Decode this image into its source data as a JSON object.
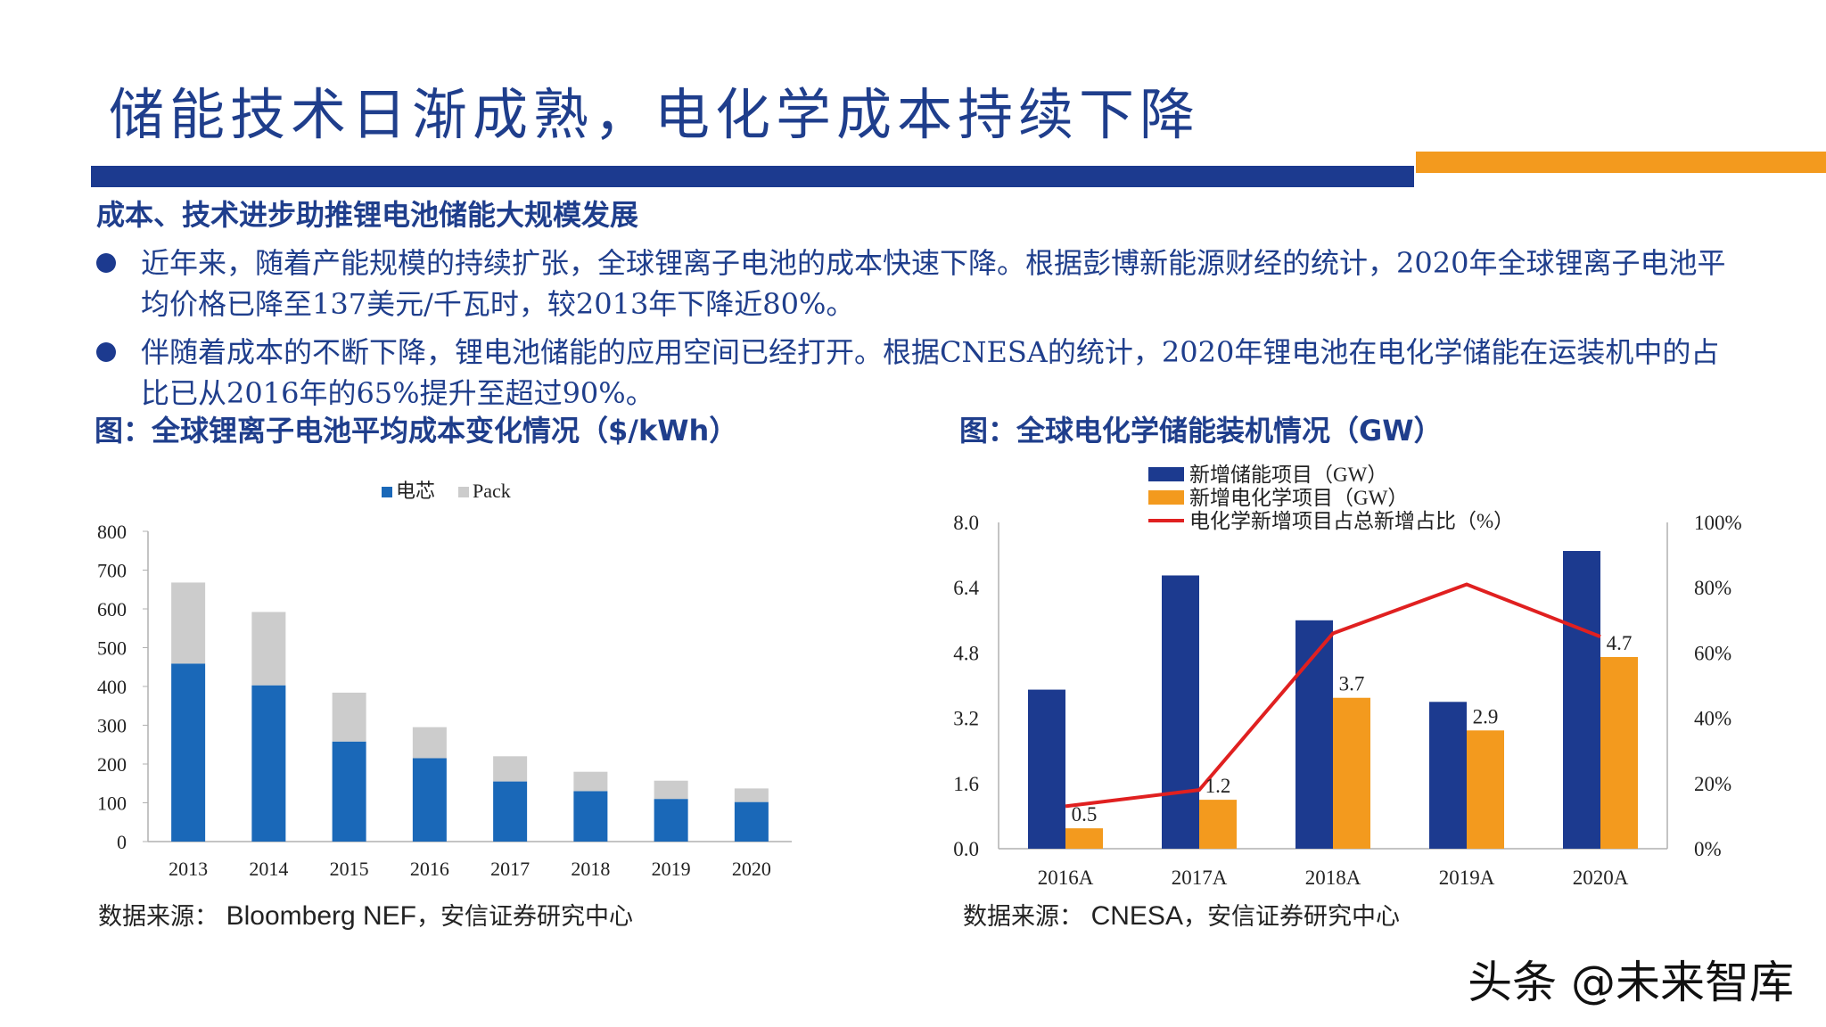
{
  "header": {
    "title": "储能技术日渐成熟，电化学成本持续下降",
    "subtitle": "成本、技术进步助推锂电池储能大规模发展",
    "bullets": [
      "近年来，随着产能规模的持续扩张，全球锂离子电池的成本快速下降。根据彭博新能源财经的统计，2020年全球锂离子电池平均价格已降至137美元/千瓦时，较2013年下降近80%。",
      "伴随着成本的不断下降，锂电池储能的应用空间已经打开。根据CNESA的统计，2020年锂电池在电化学储能在运装机中的占比已从2016年的65%提升至超过90%。"
    ]
  },
  "colors": {
    "brand_blue": "#1c3a8f",
    "brand_orange": "#f39a1e",
    "cell_blue": "#1a68b8",
    "pack_gray": "#cccccc",
    "line_red": "#e02020"
  },
  "left_figure": {
    "caption": "图：全球锂离子电池平均成本变化情况（$/kWh）",
    "source_label": "数据来源：",
    "source_en": "Bloomberg NEF",
    "source_cn": "，安信证券研究中心"
  },
  "right_figure": {
    "caption": "图：全球电化学储能装机情况（GW）",
    "source_label": "数据来源：",
    "source_en": "CNESA",
    "source_cn": "，安信证券研究中心"
  },
  "watermark": "头条 @未来智库",
  "chart_data": [
    {
      "type": "bar",
      "stacked": true,
      "categories": [
        "2013",
        "2014",
        "2015",
        "2016",
        "2017",
        "2018",
        "2019",
        "2020"
      ],
      "series": [
        {
          "name": "电芯",
          "values": [
            459,
            403,
            258,
            215,
            155,
            130,
            110,
            102
          ]
        },
        {
          "name": "Pack",
          "values": [
            209,
            189,
            126,
            80,
            65,
            50,
            47,
            35
          ]
        }
      ],
      "yticks": [
        "800",
        "700",
        "600",
        "500",
        "400",
        "300",
        "200",
        "100",
        "0"
      ],
      "ylim": [
        0,
        800
      ],
      "legend_position": "top"
    },
    {
      "type": "bar",
      "categories": [
        "2016A",
        "2017A",
        "2018A",
        "2019A",
        "2020A"
      ],
      "series": [
        {
          "name": "新增储能项目（GW）",
          "values": [
            3.9,
            6.7,
            5.6,
            3.6,
            7.3
          ]
        },
        {
          "name": "新增电化学项目（GW）",
          "values": [
            0.5,
            1.2,
            3.7,
            2.9,
            4.7
          ],
          "labels": [
            "0.5",
            "1.2",
            "3.7",
            "2.9",
            "4.7"
          ]
        },
        {
          "name": "电化学新增项目占总新增占比（%）",
          "type": "line",
          "axis": "right",
          "values": [
            13,
            18,
            66,
            81,
            65
          ]
        }
      ],
      "yticks_left": [
        "8.0",
        "6.4",
        "4.8",
        "3.2",
        "1.6",
        "0.0"
      ],
      "yticks_right": [
        "100%",
        "80%",
        "60%",
        "40%",
        "20%",
        "0%"
      ],
      "ylim": [
        0,
        8
      ],
      "ylim_right": [
        0,
        100
      ],
      "legend_position": "top"
    }
  ]
}
